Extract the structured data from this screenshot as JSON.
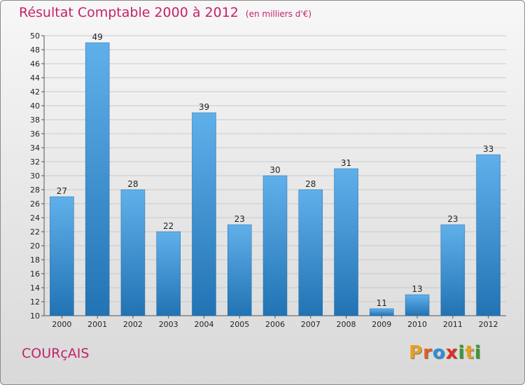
{
  "header": {
    "title": "Résultat Comptable 2000 à 2012",
    "subtitle": "(en milliers d'€)"
  },
  "footer": {
    "commune": "COURçAIS",
    "logo": {
      "letters": [
        "P",
        "r",
        "o",
        "x",
        "i",
        "t",
        "i"
      ],
      "colors": [
        "#e8a020",
        "#e06020",
        "#2f8fd8",
        "#e03020",
        "#3a9a30",
        "#e8a020",
        "#3a9a30"
      ]
    }
  },
  "chart_data": {
    "type": "bar",
    "categories": [
      "2000",
      "2001",
      "2002",
      "2003",
      "2004",
      "2005",
      "2006",
      "2007",
      "2008",
      "2009",
      "2010",
      "2011",
      "2012"
    ],
    "values": [
      27,
      49,
      28,
      22,
      39,
      23,
      30,
      28,
      31,
      11,
      13,
      23,
      33
    ],
    "ylim": [
      10,
      50
    ],
    "yticks": [
      10,
      12,
      14,
      16,
      18,
      20,
      22,
      24,
      26,
      28,
      30,
      32,
      34,
      36,
      38,
      40,
      42,
      44,
      46,
      48,
      50
    ],
    "grid": true,
    "bar_color": "#3d97d8"
  }
}
